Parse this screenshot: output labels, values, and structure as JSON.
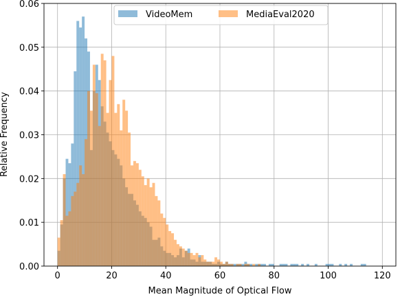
{
  "chart_data": {
    "type": "histogram",
    "title": "",
    "xlabel": "Mean Magnitude of Optical Flow",
    "ylabel": "Relative Frequency",
    "xlim": [
      -5,
      125
    ],
    "ylim": [
      0,
      0.06
    ],
    "xticks": [
      0,
      20,
      40,
      60,
      80,
      100,
      120
    ],
    "xtick_labels": [
      "0",
      "20",
      "40",
      "60",
      "80",
      "100",
      "120"
    ],
    "yticks": [
      0.0,
      0.01,
      0.02,
      0.03,
      0.04,
      0.05,
      0.06
    ],
    "ytick_labels": [
      "0.00",
      "0.01",
      "0.02",
      "0.03",
      "0.04",
      "0.05",
      "0.06"
    ],
    "grid": true,
    "legend_position": "top-center",
    "bin_width": 1,
    "series": [
      {
        "name": "VideoMem",
        "color": "#1f77b4",
        "alpha": 0.5,
        "bins": [
          [
            0,
            0.0035
          ],
          [
            1,
            0.0095
          ],
          [
            2,
            0.02
          ],
          [
            3,
            0.0245
          ],
          [
            4,
            0.0235
          ],
          [
            5,
            0.028
          ],
          [
            6,
            0.0445
          ],
          [
            7,
            0.056
          ],
          [
            8,
            0.0545
          ],
          [
            9,
            0.057
          ],
          [
            10,
            0.052
          ],
          [
            11,
            0.049
          ],
          [
            12,
            0.0265
          ],
          [
            13,
            0.04
          ],
          [
            14,
            0.046
          ],
          [
            15,
            0.0425
          ],
          [
            16,
            0.0365
          ],
          [
            17,
            0.033
          ],
          [
            18,
            0.0305
          ],
          [
            19,
            0.0285
          ],
          [
            20,
            0.0265
          ],
          [
            21,
            0.0255
          ],
          [
            22,
            0.0245
          ],
          [
            23,
            0.023
          ],
          [
            24,
            0.02
          ],
          [
            25,
            0.018
          ],
          [
            26,
            0.0165
          ],
          [
            27,
            0.0165
          ],
          [
            28,
            0.015
          ],
          [
            29,
            0.014
          ],
          [
            30,
            0.0125
          ],
          [
            31,
            0.0115
          ],
          [
            32,
            0.011
          ],
          [
            33,
            0.01
          ],
          [
            34,
            0.009
          ],
          [
            35,
            0.006
          ],
          [
            36,
            0.006
          ],
          [
            37,
            0.0065
          ],
          [
            38,
            0.0045
          ],
          [
            39,
            0.0035
          ],
          [
            40,
            0.003
          ],
          [
            41,
            0.003
          ],
          [
            42,
            0.0025
          ],
          [
            43,
            0.002
          ],
          [
            44,
            0.0025
          ],
          [
            45,
            0.004
          ],
          [
            46,
            0.002
          ],
          [
            47,
            0.0035
          ],
          [
            48,
            0.004
          ],
          [
            49,
            0.0015
          ],
          [
            50,
            0.0015
          ],
          [
            51,
            0.001
          ],
          [
            52,
            0.0025
          ],
          [
            53,
            0.001
          ],
          [
            54,
            0.001
          ],
          [
            55,
            0.001
          ],
          [
            56,
            0.001
          ],
          [
            57,
            0.0005
          ],
          [
            58,
            0.0005
          ],
          [
            59,
            0.001
          ],
          [
            60,
            0.0005
          ],
          [
            61,
            0.0005
          ],
          [
            62,
            0.001
          ],
          [
            63,
            0.0005
          ],
          [
            64,
            0.0005
          ],
          [
            65,
            0.0005
          ],
          [
            66,
            0.0005
          ],
          [
            67,
            0.0005
          ],
          [
            68,
            0.0005
          ],
          [
            69,
            0.001
          ],
          [
            70,
            0.0005
          ],
          [
            71,
            0.0005
          ],
          [
            73,
            0.0005
          ],
          [
            74,
            0.0005
          ],
          [
            75,
            0.0005
          ],
          [
            76,
            0.0005
          ],
          [
            78,
            0.0005
          ],
          [
            79,
            0.0005
          ],
          [
            82,
            0.0005
          ],
          [
            83,
            0.0005
          ],
          [
            84,
            0.0005
          ],
          [
            86,
            0.0005
          ],
          [
            87,
            0.0005
          ],
          [
            88,
            0.0005
          ],
          [
            90,
            0.0005
          ],
          [
            92,
            0.0005
          ],
          [
            95,
            0.0005
          ],
          [
            99,
            0.0005
          ],
          [
            100,
            0.0005
          ],
          [
            101,
            0.0005
          ],
          [
            104,
            0.0005
          ],
          [
            106,
            0.0005
          ],
          [
            108,
            0.0005
          ],
          [
            112,
            0.0005
          ],
          [
            113,
            0.0005
          ]
        ]
      },
      {
        "name": "MediaEval2020",
        "color": "#ff7f0e",
        "alpha": 0.5,
        "bins": [
          [
            0,
            0.0065
          ],
          [
            1,
            0.0105
          ],
          [
            2,
            0.021
          ],
          [
            3,
            0.0115
          ],
          [
            4,
            0.0125
          ],
          [
            5,
            0.016
          ],
          [
            6,
            0.017
          ],
          [
            7,
            0.019
          ],
          [
            8,
            0.023
          ],
          [
            9,
            0.021
          ],
          [
            10,
            0.029
          ],
          [
            11,
            0.04
          ],
          [
            12,
            0.0355
          ],
          [
            13,
            0.046
          ],
          [
            14,
            0.0395
          ],
          [
            15,
            0.032
          ],
          [
            16,
            0.0485
          ],
          [
            17,
            0.047
          ],
          [
            18,
            0.035
          ],
          [
            19,
            0.0425
          ],
          [
            20,
            0.048
          ],
          [
            21,
            0.035
          ],
          [
            22,
            0.037
          ],
          [
            23,
            0.031
          ],
          [
            24,
            0.038
          ],
          [
            25,
            0.0355
          ],
          [
            26,
            0.0305
          ],
          [
            27,
            0.023
          ],
          [
            28,
            0.024
          ],
          [
            29,
            0.0235
          ],
          [
            30,
            0.022
          ],
          [
            31,
            0.0205
          ],
          [
            32,
            0.0185
          ],
          [
            33,
            0.02
          ],
          [
            34,
            0.018
          ],
          [
            35,
            0.019
          ],
          [
            36,
            0.016
          ],
          [
            37,
            0.015
          ],
          [
            38,
            0.012
          ],
          [
            39,
            0.011
          ],
          [
            40,
            0.0095
          ],
          [
            41,
            0.008
          ],
          [
            42,
            0.0075
          ],
          [
            43,
            0.006
          ],
          [
            44,
            0.005
          ],
          [
            45,
            0.0045
          ],
          [
            46,
            0.004
          ],
          [
            47,
            0.0035
          ],
          [
            48,
            0.003
          ],
          [
            49,
            0.003
          ],
          [
            50,
            0.0025
          ],
          [
            51,
            0.003
          ],
          [
            52,
            0.002
          ],
          [
            53,
            0.0025
          ],
          [
            54,
            0.0015
          ],
          [
            55,
            0.001
          ],
          [
            56,
            0.001
          ],
          [
            57,
            0.001
          ],
          [
            58,
            0.002
          ],
          [
            59,
            0.0015
          ],
          [
            60,
            0.001
          ],
          [
            61,
            0.0005
          ],
          [
            62,
            0.001
          ],
          [
            63,
            0.0005
          ],
          [
            64,
            0.0005
          ],
          [
            66,
            0.0005
          ],
          [
            67,
            0.0005
          ],
          [
            69,
            0.0005
          ],
          [
            70,
            0.0005
          ],
          [
            72,
            0.0005
          ],
          [
            74,
            0.0005
          ]
        ]
      }
    ]
  }
}
